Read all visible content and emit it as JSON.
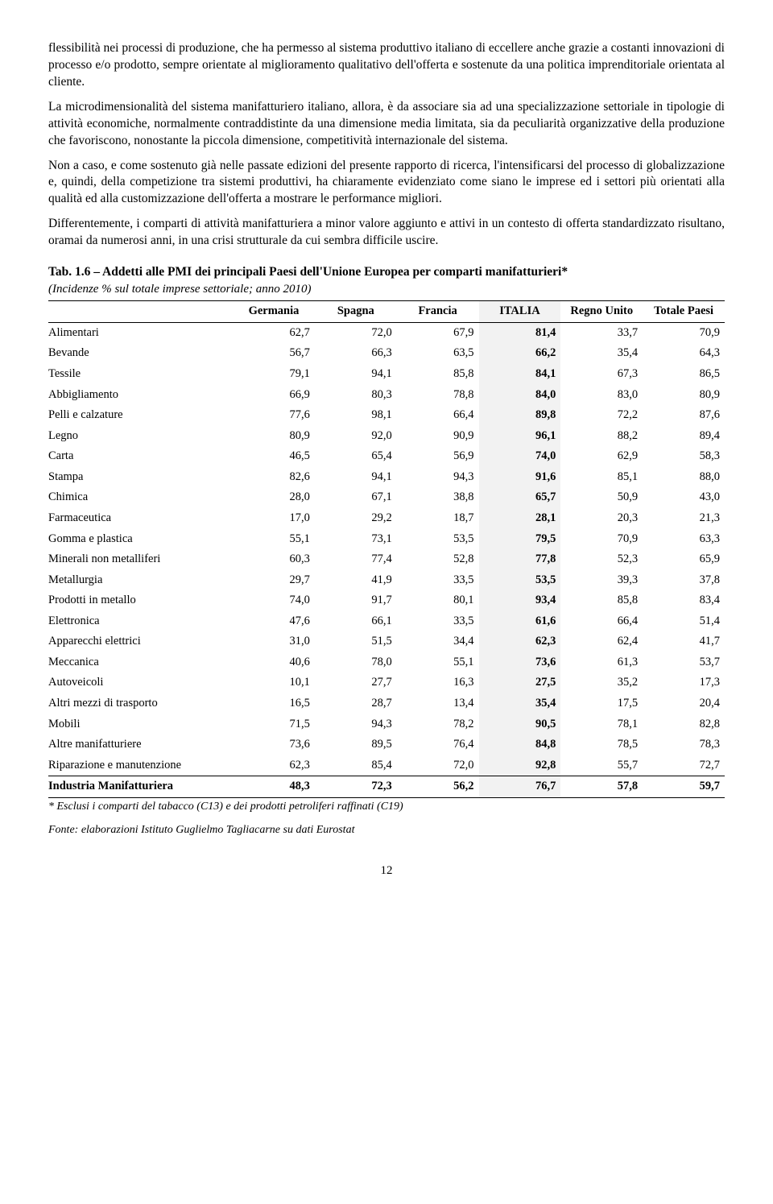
{
  "paragraphs": {
    "p1": "flessibilità nei processi di produzione, che ha permesso al sistema produttivo italiano di eccellere anche grazie a costanti innovazioni di processo e/o prodotto, sempre orientate al miglioramento qualitativo dell'offerta e sostenute da una politica imprenditoriale orientata al cliente.",
    "p2": "La microdimensionalità del sistema manifatturiero italiano, allora, è da associare sia ad una specializzazione settoriale in tipologie di attività economiche, normalmente contraddistinte da una dimensione media limitata, sia da peculiarità organizzative della produzione che favoriscono, nonostante la piccola dimensione, competitività internazionale del sistema.",
    "p3": "Non a caso, e come sostenuto già nelle passate edizioni del presente rapporto di ricerca, l'intensificarsi del processo di globalizzazione e, quindi, della competizione tra sistemi produttivi, ha chiaramente evidenziato come siano le imprese ed i settori più orientati alla qualità ed alla customizzazione dell'offerta a mostrare le performance migliori.",
    "p4": "Differentemente, i comparti di attività manifatturiera a minor valore aggiunto e attivi in un contesto di offerta standardizzato risultano, oramai da numerosi anni, in una crisi strutturale da cui sembra difficile uscire."
  },
  "table": {
    "title": "Tab. 1.6 – Addetti alle PMI dei principali Paesi dell'Unione Europea per comparti manifatturieri*",
    "subtitle": "(Incidenze % sul totale imprese settoriale; anno 2010)",
    "columns": [
      "Germania",
      "Spagna",
      "Francia",
      "ITALIA",
      "Regno Unito",
      "Totale Paesi"
    ],
    "rows": [
      {
        "label": "Alimentari",
        "values": [
          "62,7",
          "72,0",
          "67,9",
          "81,4",
          "33,7",
          "70,9"
        ]
      },
      {
        "label": "Bevande",
        "values": [
          "56,7",
          "66,3",
          "63,5",
          "66,2",
          "35,4",
          "64,3"
        ]
      },
      {
        "label": "Tessile",
        "values": [
          "79,1",
          "94,1",
          "85,8",
          "84,1",
          "67,3",
          "86,5"
        ]
      },
      {
        "label": "Abbigliamento",
        "values": [
          "66,9",
          "80,3",
          "78,8",
          "84,0",
          "83,0",
          "80,9"
        ]
      },
      {
        "label": "Pelli e calzature",
        "values": [
          "77,6",
          "98,1",
          "66,4",
          "89,8",
          "72,2",
          "87,6"
        ]
      },
      {
        "label": "Legno",
        "values": [
          "80,9",
          "92,0",
          "90,9",
          "96,1",
          "88,2",
          "89,4"
        ]
      },
      {
        "label": "Carta",
        "values": [
          "46,5",
          "65,4",
          "56,9",
          "74,0",
          "62,9",
          "58,3"
        ]
      },
      {
        "label": "Stampa",
        "values": [
          "82,6",
          "94,1",
          "94,3",
          "91,6",
          "85,1",
          "88,0"
        ]
      },
      {
        "label": "Chimica",
        "values": [
          "28,0",
          "67,1",
          "38,8",
          "65,7",
          "50,9",
          "43,0"
        ]
      },
      {
        "label": "Farmaceutica",
        "values": [
          "17,0",
          "29,2",
          "18,7",
          "28,1",
          "20,3",
          "21,3"
        ]
      },
      {
        "label": "Gomma e plastica",
        "values": [
          "55,1",
          "73,1",
          "53,5",
          "79,5",
          "70,9",
          "63,3"
        ]
      },
      {
        "label": "Minerali non metalliferi",
        "values": [
          "60,3",
          "77,4",
          "52,8",
          "77,8",
          "52,3",
          "65,9"
        ]
      },
      {
        "label": "Metallurgia",
        "values": [
          "29,7",
          "41,9",
          "33,5",
          "53,5",
          "39,3",
          "37,8"
        ]
      },
      {
        "label": "Prodotti in metallo",
        "values": [
          "74,0",
          "91,7",
          "80,1",
          "93,4",
          "85,8",
          "83,4"
        ]
      },
      {
        "label": "Elettronica",
        "values": [
          "47,6",
          "66,1",
          "33,5",
          "61,6",
          "66,4",
          "51,4"
        ]
      },
      {
        "label": "Apparecchi elettrici",
        "values": [
          "31,0",
          "51,5",
          "34,4",
          "62,3",
          "62,4",
          "41,7"
        ]
      },
      {
        "label": "Meccanica",
        "values": [
          "40,6",
          "78,0",
          "55,1",
          "73,6",
          "61,3",
          "53,7"
        ]
      },
      {
        "label": "Autoveicoli",
        "values": [
          "10,1",
          "27,7",
          "16,3",
          "27,5",
          "35,2",
          "17,3"
        ]
      },
      {
        "label": "Altri mezzi di trasporto",
        "values": [
          "16,5",
          "28,7",
          "13,4",
          "35,4",
          "17,5",
          "20,4"
        ]
      },
      {
        "label": "Mobili",
        "values": [
          "71,5",
          "94,3",
          "78,2",
          "90,5",
          "78,1",
          "82,8"
        ]
      },
      {
        "label": "Altre manifatturiere",
        "values": [
          "73,6",
          "89,5",
          "76,4",
          "84,8",
          "78,5",
          "78,3"
        ]
      },
      {
        "label": "Riparazione e manutenzione",
        "values": [
          "62,3",
          "85,4",
          "72,0",
          "92,8",
          "55,7",
          "72,7"
        ]
      }
    ],
    "total": {
      "label": "Industria Manifatturiera",
      "values": [
        "48,3",
        "72,3",
        "56,2",
        "76,7",
        "57,8",
        "59,7"
      ]
    },
    "footnote1": "* Esclusi i comparti del tabacco (C13) e dei prodotti petroliferi raffinati (C19)",
    "footnote2": "Fonte: elaborazioni Istituto Guglielmo Tagliacarne su dati Eurostat"
  },
  "pagenum": "12"
}
